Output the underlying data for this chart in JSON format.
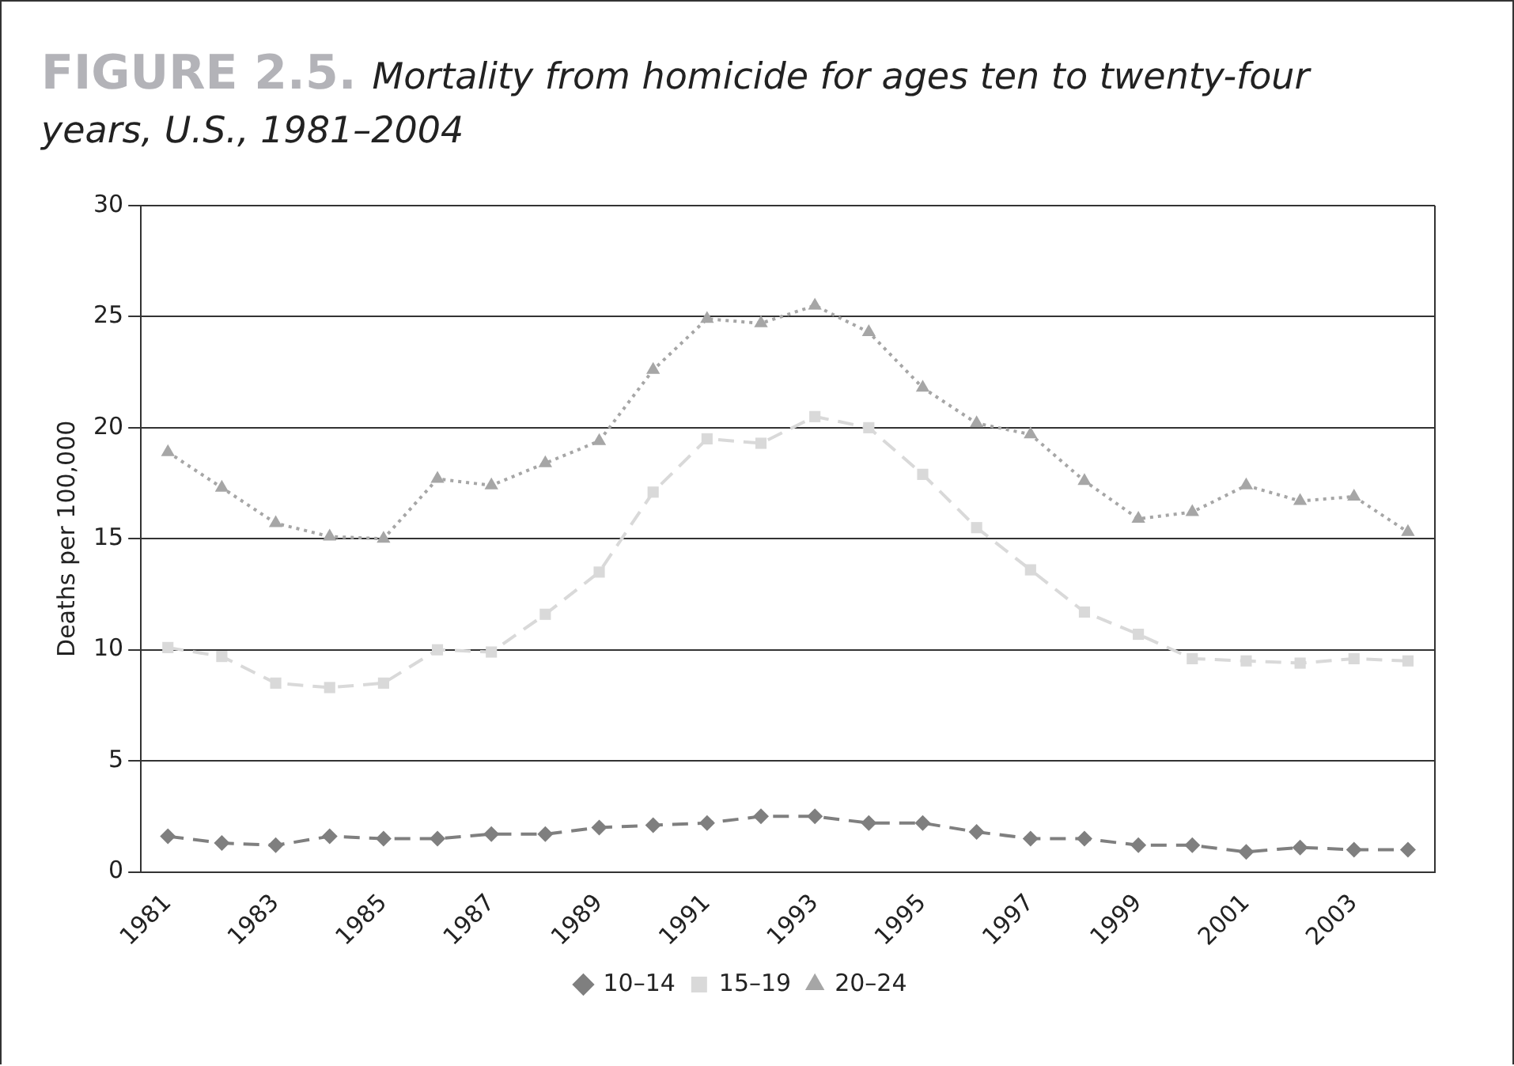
{
  "chart_data": {
    "type": "line",
    "title": "FIGURE 2.5.",
    "subtitle": "Mortality from homicide for ages ten to twenty-four years, U.S., 1981–2004",
    "ylabel": "Deaths per 100,000",
    "categories": [
      "1981",
      null,
      "1983",
      null,
      "1985",
      null,
      "1987",
      null,
      "1989",
      null,
      "1991",
      null,
      "1993",
      null,
      "1995",
      null,
      "1997",
      null,
      "1999",
      null,
      "2001",
      null,
      "2003",
      null
    ],
    "series": [
      {
        "name": "10–14",
        "color": "#7f7f7f",
        "marker": "diamond",
        "line_style": "dashed",
        "values": [
          1.6,
          1.3,
          1.2,
          1.6,
          1.5,
          1.5,
          1.7,
          1.7,
          2.0,
          2.1,
          2.2,
          2.5,
          2.5,
          2.2,
          2.2,
          1.8,
          1.5,
          1.5,
          1.2,
          1.2,
          0.9,
          1.1,
          1.0,
          1.0
        ]
      },
      {
        "name": "15–19",
        "color": "#d9d9d9",
        "marker": "square",
        "line_style": "dashed",
        "values": [
          10.1,
          9.7,
          8.5,
          8.3,
          8.5,
          10.0,
          9.9,
          11.6,
          13.5,
          17.1,
          19.5,
          19.3,
          20.5,
          20.0,
          17.9,
          15.5,
          13.6,
          11.7,
          10.7,
          9.6,
          9.5,
          9.4,
          9.6,
          9.5
        ]
      },
      {
        "name": "20–24",
        "color": "#a6a6a6",
        "marker": "triangle",
        "line_style": "dotted",
        "values": [
          18.9,
          17.3,
          15.7,
          15.1,
          15.0,
          17.7,
          17.4,
          18.4,
          19.4,
          22.6,
          24.9,
          24.7,
          25.5,
          24.3,
          21.8,
          20.2,
          19.7,
          17.6,
          15.9,
          16.2,
          17.4,
          16.7,
          16.9,
          15.3
        ]
      }
    ],
    "ylim": [
      0,
      30
    ],
    "yticks": [
      0,
      5,
      10,
      15,
      20,
      25,
      30
    ],
    "grid": "y",
    "legend": "bottom"
  }
}
